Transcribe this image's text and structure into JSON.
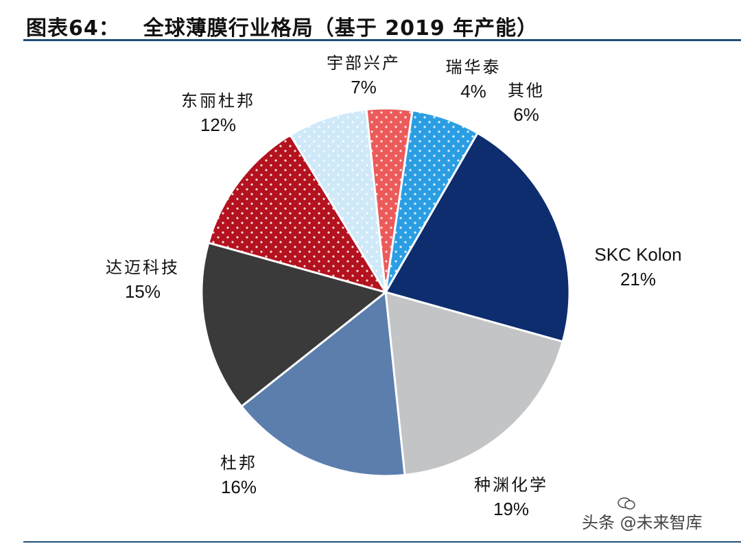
{
  "figure": {
    "number": "图表64：",
    "title": "全球薄膜行业格局（基于 2019 年产能）"
  },
  "chart_data": {
    "type": "pie",
    "title": "全球薄膜行业格局（基于 2019 年产能）",
    "slices": [
      {
        "label": "SKC Kolon",
        "percent_label": "21%",
        "value": 21,
        "color": "#0d2d6e",
        "pattern": "solid"
      },
      {
        "label": "种渊化学",
        "percent_label": "19%",
        "value": 19,
        "color": "#c3c4c6",
        "pattern": "solid"
      },
      {
        "label": "杜邦",
        "percent_label": "16%",
        "value": 16,
        "color": "#5b7ead",
        "pattern": "solid"
      },
      {
        "label": "达迈科技",
        "percent_label": "15%",
        "value": 15,
        "color": "#3a3a3a",
        "pattern": "solid"
      },
      {
        "label": "东丽杜邦",
        "percent_label": "12%",
        "value": 12,
        "color": "#b3121e",
        "pattern": "dotted"
      },
      {
        "label": "宇部兴产",
        "percent_label": "7%",
        "value": 7,
        "color": "#cfe9f8",
        "pattern": "dotted"
      },
      {
        "label": "瑞华泰",
        "percent_label": "4%",
        "value": 4,
        "color": "#ec5a5a",
        "pattern": "dotted"
      },
      {
        "label": "其他",
        "percent_label": "6%",
        "value": 6,
        "color": "#2b9ee3",
        "pattern": "dotted"
      }
    ]
  },
  "watermark": {
    "text": "头条 @未来智库"
  }
}
